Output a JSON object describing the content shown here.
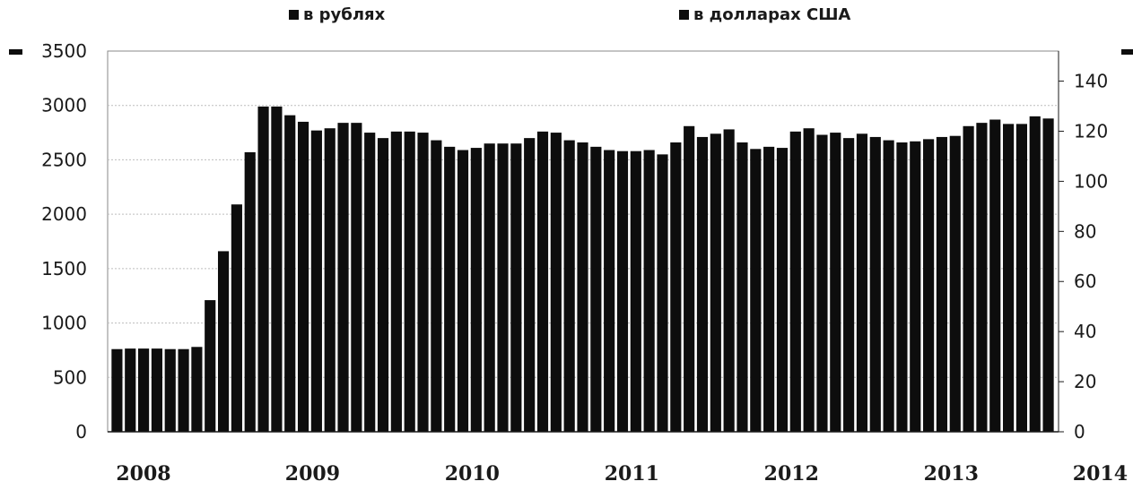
{
  "chart_data": {
    "type": "bar",
    "title": "",
    "xlabel": "",
    "ylabel": "",
    "ylim": [
      0,
      3500
    ],
    "y2lim": [
      0,
      152
    ],
    "left_ticks": [
      "3500",
      "3000",
      "2500",
      "2000",
      "1500",
      "1000",
      "500",
      "0"
    ],
    "left_tick_values": [
      3500,
      3000,
      2500,
      2000,
      1500,
      1000,
      500,
      0
    ],
    "right_ticks": [
      "140",
      "120",
      "100",
      "80",
      "60",
      "40",
      "20",
      "0"
    ],
    "right_tick_values": [
      140,
      120,
      100,
      80,
      60,
      40,
      20,
      0
    ],
    "x_labels": [
      "2008",
      "2009",
      "2010",
      "2011",
      "2012",
      "2013",
      "2014"
    ],
    "x_label_positions": [
      0,
      12,
      24,
      36,
      48,
      60,
      72
    ],
    "grid": true,
    "legend_placement": "top",
    "series": [
      {
        "name": "в рублях",
        "color": "#0d0d0d",
        "values": [
          760,
          765,
          765,
          765,
          760,
          760,
          780,
          1210,
          1660,
          2090,
          2570,
          2990,
          2990,
          2910,
          2850,
          2770,
          2790,
          2840,
          2840,
          2750,
          2700,
          2760,
          2760,
          2750,
          2680,
          2620,
          2590,
          2610,
          2650,
          2650,
          2650,
          2700,
          2760,
          2750,
          2680,
          2660,
          2620,
          2590,
          2580,
          2580,
          2590,
          2550,
          2660,
          2810,
          2710,
          2740,
          2780,
          2660,
          2600,
          2620,
          2610,
          2760,
          2790,
          2730,
          2750,
          2700,
          2740,
          2710,
          2680,
          2660,
          2670,
          2690,
          2710,
          2720,
          2810,
          2840,
          2870,
          2830,
          2830,
          2900,
          2880
        ]
      },
      {
        "name": "в долларах США",
        "color": "#0d0d0d",
        "values": []
      }
    ]
  }
}
